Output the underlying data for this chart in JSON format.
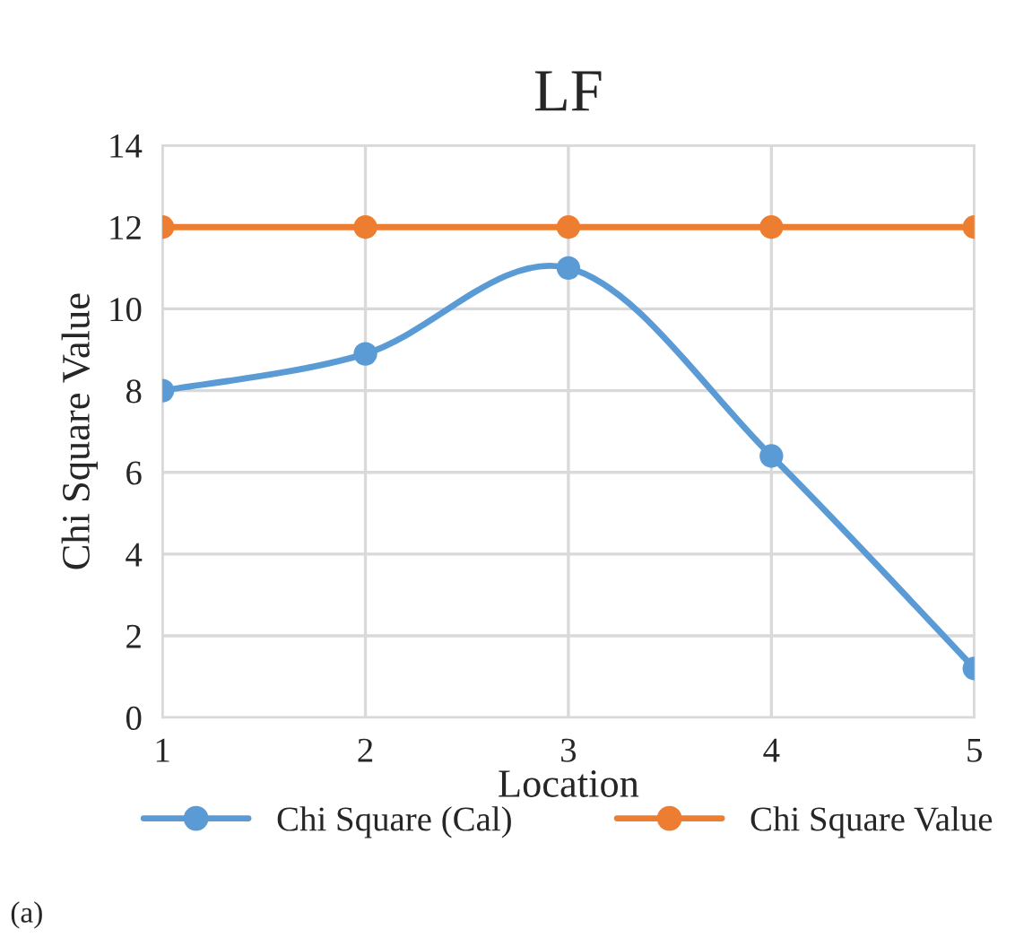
{
  "chart_data": {
    "type": "line",
    "title": "LF",
    "xlabel": "Location",
    "ylabel": "Chi Square Value",
    "x": [
      1,
      2,
      3,
      4,
      5
    ],
    "series": [
      {
        "name": "Chi Square (Cal)",
        "color": "#5b9bd5",
        "values": [
          8,
          8.9,
          11,
          6.4,
          1.2
        ]
      },
      {
        "name": "Chi Square Value",
        "color": "#ed7d31",
        "values": [
          12,
          12,
          12,
          12,
          12
        ]
      }
    ],
    "xlim": [
      1,
      5
    ],
    "xticks": [
      1,
      2,
      3,
      4,
      5
    ],
    "ylim": [
      0,
      14
    ],
    "yticks": [
      0,
      2,
      4,
      6,
      8,
      10,
      12,
      14
    ],
    "grid": true,
    "legend": "bottom",
    "marker": "circle",
    "line_style": "solid",
    "annotations": [
      "(a)"
    ]
  }
}
